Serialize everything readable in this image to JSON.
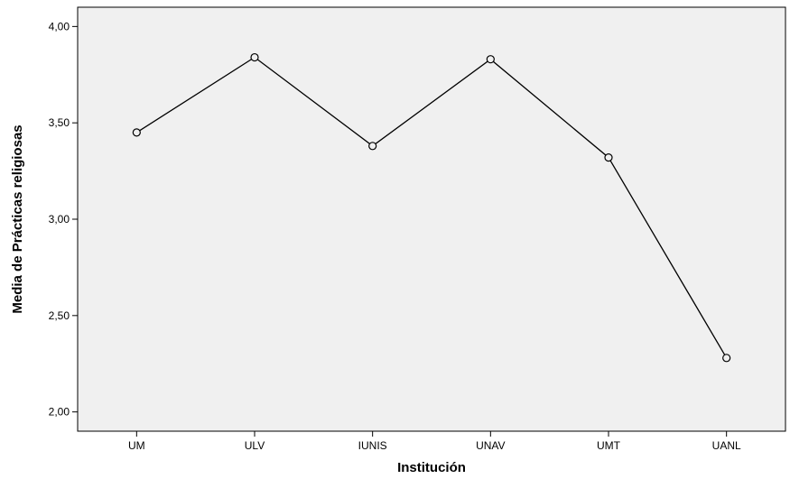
{
  "chart_data": {
    "type": "line",
    "title": "",
    "xlabel": "Institución",
    "ylabel": "Media de Prácticas religiosas",
    "categories": [
      "UM",
      "ULV",
      "IUNIS",
      "UNAV",
      "UMT",
      "UANL"
    ],
    "series": [
      {
        "values": [
          3.45,
          3.84,
          3.38,
          3.83,
          3.32,
          2.28
        ]
      }
    ],
    "ylim": [
      1.9,
      4.1
    ],
    "yticks": [
      2.0,
      2.5,
      3.0,
      3.5,
      4.0
    ],
    "ytick_labels": [
      "2,00",
      "2,50",
      "3,00",
      "3,50",
      "4,00"
    ],
    "grid": false,
    "marker": "open-circle",
    "colors": {
      "plot_background": "#f0f0f0",
      "line": "#000000",
      "marker": "#000000"
    }
  }
}
